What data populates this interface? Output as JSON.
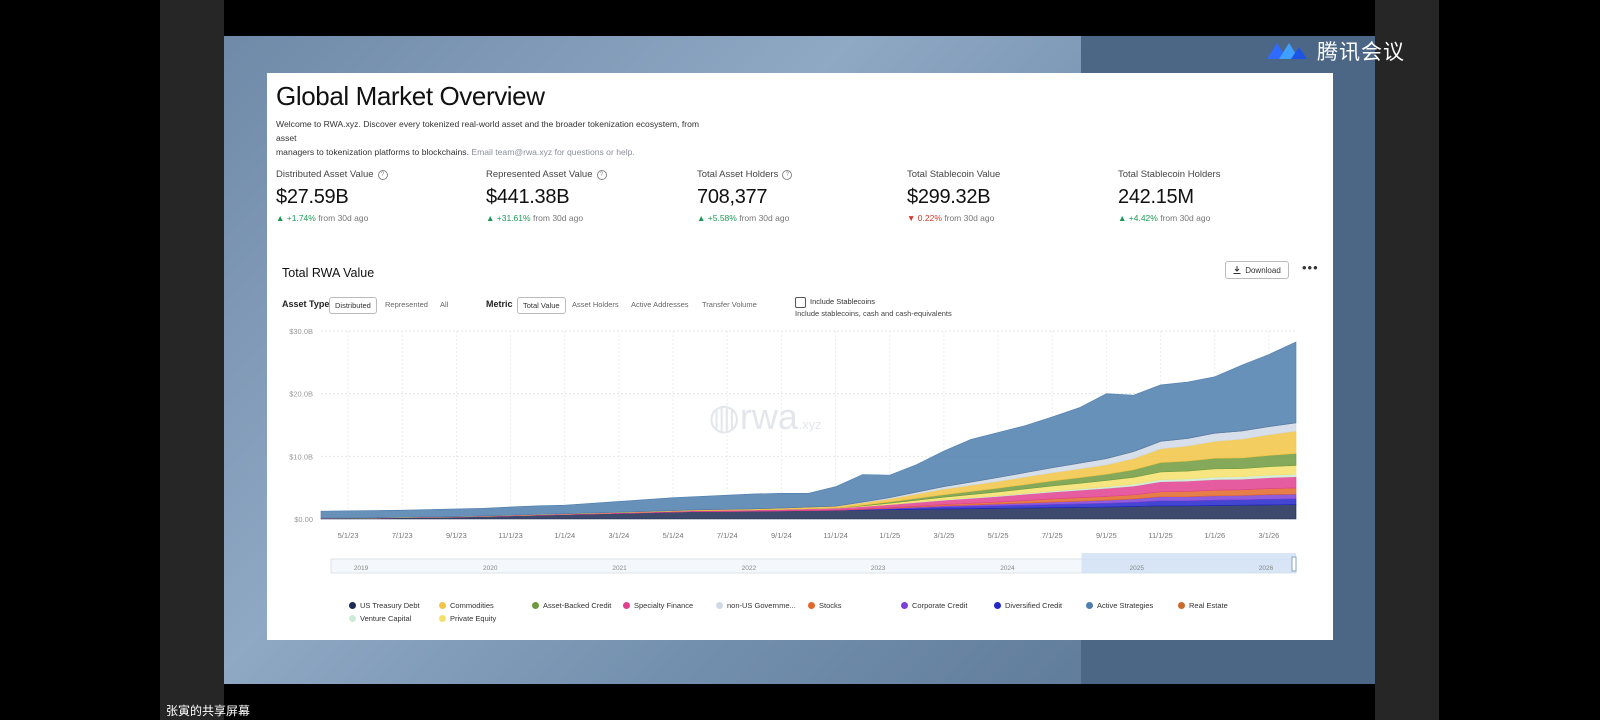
{
  "meeting": {
    "app_name": "腾讯会议",
    "share_label": "张寅的共享屏幕"
  },
  "page": {
    "title": "Global Market Overview",
    "desc_line1": "Welcome to RWA.xyz. Discover every tokenized real-world asset and the broader tokenization ecosystem, from asset",
    "desc_line2": "managers to tokenization platforms to blockchains.",
    "desc_email": "Email team@rwa.xyz for questions or help."
  },
  "stats": [
    {
      "label": "Distributed Asset Value",
      "info_icon": true,
      "value": "$27.59B",
      "change": "▲ +1.74%",
      "direction": "up",
      "suffix": "from 30d ago"
    },
    {
      "label": "Represented Asset Value",
      "info_icon": true,
      "value": "$441.38B",
      "change": "▲ +31.61%",
      "direction": "up",
      "suffix": "from 30d ago"
    },
    {
      "label": "Total Asset Holders",
      "info_icon": true,
      "value": "708,377",
      "change": "▲ +5.58%",
      "direction": "up",
      "suffix": "from 30d ago"
    },
    {
      "label": "Total Stablecoin Value",
      "info_icon": false,
      "value": "$299.32B",
      "change": "▼ 0.22%",
      "direction": "down",
      "suffix": "from 30d ago"
    },
    {
      "label": "Total Stablecoin Holders",
      "info_icon": false,
      "value": "242.15M",
      "change": "▲ +4.42%",
      "direction": "up",
      "suffix": "from 30d ago"
    }
  ],
  "card": {
    "title": "Total RWA Value",
    "download_label": "Download",
    "more_label": "•••",
    "asset_type_label": "Asset Type",
    "asset_types": [
      "Distributed",
      "Represented",
      "All"
    ],
    "asset_type_selected": "Distributed",
    "metric_label": "Metric",
    "metrics": [
      "Total Value",
      "Asset Holders",
      "Active Addresses",
      "Transfer Volume"
    ],
    "metric_selected": "Total Value",
    "include_label": "Include Stablecoins",
    "include_sub": "Include stablecoins, cash and cash-equivalents",
    "watermark": "rwa",
    "watermark_sub": ".xyz"
  },
  "chart_data": {
    "type": "area",
    "stacked": true,
    "ylim": [
      0,
      30
    ],
    "y_ticks": [
      "$0.00",
      "$10.0B",
      "$20.0B",
      "$30.0B"
    ],
    "x_tick_labels": [
      "5/1/23",
      "7/1/23",
      "9/1/23",
      "11/1/23",
      "1/1/24",
      "3/1/24",
      "5/1/24",
      "7/1/24",
      "9/1/24",
      "11/1/24",
      "1/1/25",
      "3/1/25",
      "5/1/25",
      "7/1/25",
      "9/1/25",
      "11/1/25",
      "1/1/26",
      "3/1/26"
    ],
    "navigator_years": [
      "2019",
      "2020",
      "2021",
      "2022",
      "2023",
      "2024",
      "2025",
      "2026"
    ],
    "x": [
      "4/1/23",
      "5/1/23",
      "6/1/23",
      "7/1/23",
      "8/1/23",
      "9/1/23",
      "10/1/23",
      "11/1/23",
      "12/1/23",
      "1/1/24",
      "2/1/24",
      "3/1/24",
      "4/1/24",
      "5/1/24",
      "6/1/24",
      "7/1/24",
      "8/1/24",
      "9/1/24",
      "10/1/24",
      "11/1/24",
      "12/1/24",
      "1/1/25",
      "2/1/25",
      "3/1/25",
      "4/1/25",
      "5/1/25",
      "6/1/25",
      "7/1/25",
      "8/1/25",
      "9/1/25",
      "10/1/25",
      "11/1/25",
      "12/1/25",
      "1/1/26",
      "2/1/26",
      "3/1/26",
      "3/20/26"
    ],
    "series": [
      {
        "name": "US Treasury Debt",
        "color": "#1b2a55",
        "values": [
          0.1,
          0.12,
          0.15,
          0.2,
          0.25,
          0.3,
          0.4,
          0.5,
          0.6,
          0.7,
          0.8,
          0.9,
          1.0,
          1.1,
          1.2,
          1.2,
          1.25,
          1.3,
          1.35,
          1.4,
          1.45,
          1.5,
          1.55,
          1.6,
          1.65,
          1.7,
          1.75,
          1.8,
          1.85,
          1.9,
          2.0,
          2.1,
          2.1,
          2.15,
          2.2,
          2.25,
          2.3
        ]
      },
      {
        "name": "Diversified Credit",
        "color": "#2326c9",
        "values": [
          0,
          0,
          0,
          0,
          0,
          0,
          0,
          0,
          0,
          0,
          0,
          0,
          0,
          0,
          0,
          0,
          0,
          0,
          0,
          0,
          0.05,
          0.1,
          0.2,
          0.3,
          0.35,
          0.4,
          0.45,
          0.5,
          0.55,
          0.6,
          0.65,
          0.8,
          0.8,
          0.85,
          0.85,
          0.9,
          0.9
        ]
      },
      {
        "name": "Corporate Credit",
        "color": "#7b3fd6",
        "values": [
          0,
          0,
          0,
          0,
          0,
          0,
          0,
          0,
          0,
          0,
          0,
          0,
          0,
          0,
          0,
          0,
          0,
          0,
          0,
          0,
          0.05,
          0.1,
          0.15,
          0.2,
          0.25,
          0.3,
          0.35,
          0.4,
          0.45,
          0.5,
          0.55,
          0.65,
          0.65,
          0.7,
          0.7,
          0.75,
          0.75
        ]
      },
      {
        "name": "Stocks",
        "color": "#e2672a",
        "values": [
          0,
          0,
          0,
          0,
          0,
          0,
          0,
          0,
          0,
          0,
          0,
          0,
          0,
          0,
          0,
          0,
          0,
          0,
          0,
          0,
          0.05,
          0.1,
          0.15,
          0.2,
          0.25,
          0.3,
          0.4,
          0.5,
          0.55,
          0.6,
          0.65,
          0.8,
          0.85,
          0.9,
          0.9,
          0.95,
          1.0
        ]
      },
      {
        "name": "Specialty Finance",
        "color": "#e0418f",
        "values": [
          0.02,
          0.03,
          0.04,
          0.05,
          0.05,
          0.06,
          0.07,
          0.08,
          0.09,
          0.1,
          0.1,
          0.12,
          0.13,
          0.15,
          0.17,
          0.2,
          0.22,
          0.25,
          0.3,
          0.35,
          0.4,
          0.5,
          0.6,
          0.7,
          0.8,
          0.9,
          1.0,
          1.1,
          1.2,
          1.3,
          1.4,
          1.6,
          1.65,
          1.7,
          1.7,
          1.75,
          1.8
        ]
      },
      {
        "name": "Venture Capital",
        "color": "#cdebd6",
        "values": [
          0,
          0,
          0,
          0,
          0,
          0,
          0,
          0,
          0,
          0,
          0,
          0,
          0,
          0,
          0,
          0,
          0,
          0,
          0,
          0,
          0,
          0.02,
          0.05,
          0.08,
          0.1,
          0.12,
          0.15,
          0.18,
          0.2,
          0.25,
          0.3,
          0.35,
          0.35,
          0.4,
          0.4,
          0.4,
          0.4
        ]
      },
      {
        "name": "Private Equity",
        "color": "#f4e06a",
        "values": [
          0,
          0,
          0,
          0,
          0,
          0,
          0,
          0,
          0,
          0,
          0,
          0,
          0,
          0,
          0,
          0,
          0,
          0,
          0,
          0,
          0.1,
          0.2,
          0.3,
          0.4,
          0.5,
          0.6,
          0.7,
          0.8,
          0.9,
          1.0,
          1.1,
          1.2,
          1.25,
          1.3,
          1.3,
          1.35,
          1.4
        ]
      },
      {
        "name": "Asset-Backed Credit",
        "color": "#6e9a3d",
        "values": [
          0,
          0,
          0,
          0,
          0,
          0,
          0,
          0,
          0,
          0,
          0,
          0,
          0,
          0,
          0,
          0,
          0,
          0,
          0,
          0,
          0.1,
          0.2,
          0.3,
          0.4,
          0.5,
          0.6,
          0.7,
          0.8,
          0.9,
          1.0,
          1.2,
          1.5,
          1.6,
          1.7,
          1.7,
          1.8,
          1.9
        ]
      },
      {
        "name": "Commodities",
        "color": "#f2c445",
        "values": [
          0.02,
          0.02,
          0.02,
          0.03,
          0.03,
          0.03,
          0.04,
          0.04,
          0.05,
          0.05,
          0.06,
          0.07,
          0.08,
          0.1,
          0.12,
          0.14,
          0.16,
          0.2,
          0.25,
          0.3,
          0.4,
          0.5,
          0.7,
          0.9,
          1.0,
          1.1,
          1.2,
          1.3,
          1.4,
          1.5,
          1.8,
          2.2,
          2.4,
          2.7,
          3.0,
          3.3,
          3.6
        ]
      },
      {
        "name": "non-US Government Debt",
        "color": "#cfd9e6",
        "values": [
          0,
          0,
          0,
          0,
          0,
          0,
          0,
          0,
          0,
          0,
          0,
          0,
          0,
          0,
          0,
          0,
          0,
          0,
          0,
          0,
          0.1,
          0.2,
          0.3,
          0.4,
          0.5,
          0.6,
          0.7,
          0.8,
          0.9,
          1.0,
          1.1,
          1.2,
          1.2,
          1.3,
          1.3,
          1.3,
          1.3
        ]
      },
      {
        "name": "Real Estate",
        "color": "#c76a2a",
        "values": [
          0,
          0,
          0,
          0,
          0,
          0,
          0,
          0,
          0,
          0,
          0,
          0,
          0,
          0,
          0,
          0,
          0,
          0,
          0,
          0,
          0,
          0,
          0,
          0,
          0,
          0,
          0,
          0,
          0,
          0,
          0,
          0,
          0,
          0,
          0,
          0,
          0
        ]
      },
      {
        "name": "Active Strategies",
        "color": "#4d7eae",
        "values": [
          1.1,
          1.13,
          1.14,
          1.12,
          1.17,
          1.21,
          1.19,
          1.3,
          1.36,
          1.35,
          1.54,
          1.71,
          1.89,
          2.05,
          2.11,
          2.26,
          2.37,
          2.35,
          2.2,
          3.1,
          4.4,
          3.58,
          4.4,
          5.67,
          6.8,
          7.18,
          7.5,
          8.12,
          8.86,
          10.35,
          9.0,
          9.0,
          9.0,
          9.0,
          10.5,
          11.5,
          12.9
        ]
      }
    ],
    "legend": [
      "US Treasury Debt",
      "Commodities",
      "Asset-Backed Credit",
      "Specialty Finance",
      "non-US Governme...",
      "Stocks",
      "Corporate Credit",
      "Diversified Credit",
      "Active Strategies",
      "Real Estate",
      "Venture Capital",
      "Private Equity"
    ]
  }
}
